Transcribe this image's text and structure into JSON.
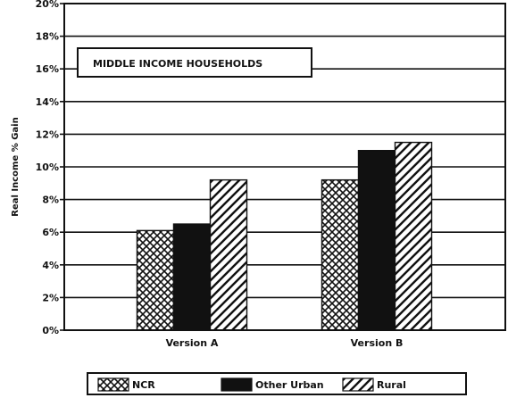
{
  "chart_data": {
    "type": "bar",
    "annotation": "MIDDLE INCOME HOUSEHOLDS",
    "ylabel": "Real Income % Gain",
    "xlabel": "",
    "ylim": [
      0,
      20
    ],
    "y_ticks": [
      "0%",
      "2%",
      "4%",
      "6%",
      "8%",
      "10%",
      "12%",
      "14%",
      "16%",
      "18%",
      "20%"
    ],
    "categories": [
      "Version A",
      "Version B"
    ],
    "series": [
      {
        "name": "NCR",
        "values": [
          6.1,
          9.2
        ],
        "pattern": "crosshatch-dots"
      },
      {
        "name": "Other Urban",
        "values": [
          6.5,
          11.0
        ],
        "pattern": "solid"
      },
      {
        "name": "Rural",
        "values": [
          9.2,
          11.5
        ],
        "pattern": "diagonal-hatch"
      }
    ],
    "grid": true,
    "legend_position": "bottom"
  }
}
